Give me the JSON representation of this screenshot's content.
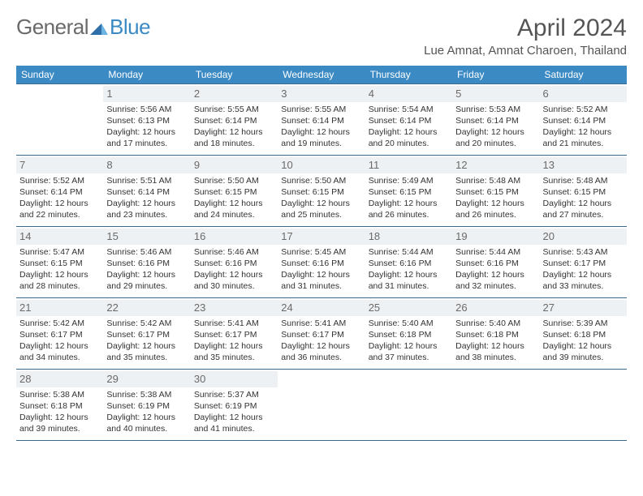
{
  "logo": {
    "text1": "General",
    "text2": "Blue"
  },
  "title": "April 2024",
  "location": "Lue Amnat, Amnat Charoen, Thailand",
  "colors": {
    "header_bg": "#3b8ac4",
    "header_text": "#ffffff",
    "border": "#3b6a8c",
    "daynum_bg": "#eef1f4",
    "daynum_text": "#6a6a6a",
    "text": "#333333",
    "logo_blue": "#3b8ac4",
    "logo_gray": "#6a6a6a"
  },
  "day_headers": [
    "Sunday",
    "Monday",
    "Tuesday",
    "Wednesday",
    "Thursday",
    "Friday",
    "Saturday"
  ],
  "weeks": [
    [
      {
        "n": "",
        "sunrise": "",
        "sunset": "",
        "daylight": ""
      },
      {
        "n": "1",
        "sunrise": "5:56 AM",
        "sunset": "6:13 PM",
        "daylight": "12 hours and 17 minutes."
      },
      {
        "n": "2",
        "sunrise": "5:55 AM",
        "sunset": "6:14 PM",
        "daylight": "12 hours and 18 minutes."
      },
      {
        "n": "3",
        "sunrise": "5:55 AM",
        "sunset": "6:14 PM",
        "daylight": "12 hours and 19 minutes."
      },
      {
        "n": "4",
        "sunrise": "5:54 AM",
        "sunset": "6:14 PM",
        "daylight": "12 hours and 20 minutes."
      },
      {
        "n": "5",
        "sunrise": "5:53 AM",
        "sunset": "6:14 PM",
        "daylight": "12 hours and 20 minutes."
      },
      {
        "n": "6",
        "sunrise": "5:52 AM",
        "sunset": "6:14 PM",
        "daylight": "12 hours and 21 minutes."
      }
    ],
    [
      {
        "n": "7",
        "sunrise": "5:52 AM",
        "sunset": "6:14 PM",
        "daylight": "12 hours and 22 minutes."
      },
      {
        "n": "8",
        "sunrise": "5:51 AM",
        "sunset": "6:14 PM",
        "daylight": "12 hours and 23 minutes."
      },
      {
        "n": "9",
        "sunrise": "5:50 AM",
        "sunset": "6:15 PM",
        "daylight": "12 hours and 24 minutes."
      },
      {
        "n": "10",
        "sunrise": "5:50 AM",
        "sunset": "6:15 PM",
        "daylight": "12 hours and 25 minutes."
      },
      {
        "n": "11",
        "sunrise": "5:49 AM",
        "sunset": "6:15 PM",
        "daylight": "12 hours and 26 minutes."
      },
      {
        "n": "12",
        "sunrise": "5:48 AM",
        "sunset": "6:15 PM",
        "daylight": "12 hours and 26 minutes."
      },
      {
        "n": "13",
        "sunrise": "5:48 AM",
        "sunset": "6:15 PM",
        "daylight": "12 hours and 27 minutes."
      }
    ],
    [
      {
        "n": "14",
        "sunrise": "5:47 AM",
        "sunset": "6:15 PM",
        "daylight": "12 hours and 28 minutes."
      },
      {
        "n": "15",
        "sunrise": "5:46 AM",
        "sunset": "6:16 PM",
        "daylight": "12 hours and 29 minutes."
      },
      {
        "n": "16",
        "sunrise": "5:46 AM",
        "sunset": "6:16 PM",
        "daylight": "12 hours and 30 minutes."
      },
      {
        "n": "17",
        "sunrise": "5:45 AM",
        "sunset": "6:16 PM",
        "daylight": "12 hours and 31 minutes."
      },
      {
        "n": "18",
        "sunrise": "5:44 AM",
        "sunset": "6:16 PM",
        "daylight": "12 hours and 31 minutes."
      },
      {
        "n": "19",
        "sunrise": "5:44 AM",
        "sunset": "6:16 PM",
        "daylight": "12 hours and 32 minutes."
      },
      {
        "n": "20",
        "sunrise": "5:43 AM",
        "sunset": "6:17 PM",
        "daylight": "12 hours and 33 minutes."
      }
    ],
    [
      {
        "n": "21",
        "sunrise": "5:42 AM",
        "sunset": "6:17 PM",
        "daylight": "12 hours and 34 minutes."
      },
      {
        "n": "22",
        "sunrise": "5:42 AM",
        "sunset": "6:17 PM",
        "daylight": "12 hours and 35 minutes."
      },
      {
        "n": "23",
        "sunrise": "5:41 AM",
        "sunset": "6:17 PM",
        "daylight": "12 hours and 35 minutes."
      },
      {
        "n": "24",
        "sunrise": "5:41 AM",
        "sunset": "6:17 PM",
        "daylight": "12 hours and 36 minutes."
      },
      {
        "n": "25",
        "sunrise": "5:40 AM",
        "sunset": "6:18 PM",
        "daylight": "12 hours and 37 minutes."
      },
      {
        "n": "26",
        "sunrise": "5:40 AM",
        "sunset": "6:18 PM",
        "daylight": "12 hours and 38 minutes."
      },
      {
        "n": "27",
        "sunrise": "5:39 AM",
        "sunset": "6:18 PM",
        "daylight": "12 hours and 39 minutes."
      }
    ],
    [
      {
        "n": "28",
        "sunrise": "5:38 AM",
        "sunset": "6:18 PM",
        "daylight": "12 hours and 39 minutes."
      },
      {
        "n": "29",
        "sunrise": "5:38 AM",
        "sunset": "6:19 PM",
        "daylight": "12 hours and 40 minutes."
      },
      {
        "n": "30",
        "sunrise": "5:37 AM",
        "sunset": "6:19 PM",
        "daylight": "12 hours and 41 minutes."
      },
      {
        "n": "",
        "sunrise": "",
        "sunset": "",
        "daylight": ""
      },
      {
        "n": "",
        "sunrise": "",
        "sunset": "",
        "daylight": ""
      },
      {
        "n": "",
        "sunrise": "",
        "sunset": "",
        "daylight": ""
      },
      {
        "n": "",
        "sunrise": "",
        "sunset": "",
        "daylight": ""
      }
    ]
  ],
  "labels": {
    "sunrise": "Sunrise:",
    "sunset": "Sunset:",
    "daylight": "Daylight:"
  }
}
